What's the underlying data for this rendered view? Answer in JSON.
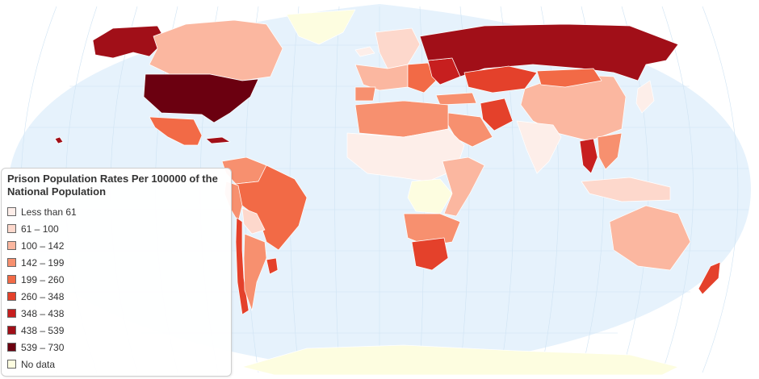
{
  "legend": {
    "title": "Prison Population Rates Per 100000 of the National Population",
    "items": [
      {
        "label": "Less than 61",
        "color": "#fdeee9"
      },
      {
        "label": "61 – 100",
        "color": "#fdd8cc"
      },
      {
        "label": "100 – 142",
        "color": "#fbb7a0"
      },
      {
        "label": "142 – 199",
        "color": "#f7906f"
      },
      {
        "label": "199 – 260",
        "color": "#f26a46"
      },
      {
        "label": "260 – 348",
        "color": "#e4412b"
      },
      {
        "label": "348 – 438",
        "color": "#c71f1f"
      },
      {
        "label": "438 – 539",
        "color": "#a10f18"
      },
      {
        "label": "539 – 730",
        "color": "#6b0010"
      },
      {
        "label": "No data",
        "color": "#fdfde0"
      }
    ]
  },
  "map": {
    "ocean_color": "#e6f2fc",
    "graticule_color": "#cfe3f3",
    "regions": [
      {
        "name": "Alaska",
        "bin": 7
      },
      {
        "name": "Canada",
        "bin": 2
      },
      {
        "name": "Greenland",
        "bin": 9
      },
      {
        "name": "United States",
        "bin": 8
      },
      {
        "name": "Mexico",
        "bin": 4
      },
      {
        "name": "Cuba",
        "bin": 7
      },
      {
        "name": "Hawaii",
        "bin": 7
      },
      {
        "name": "Venezuela/Colombia",
        "bin": 3
      },
      {
        "name": "Brazil",
        "bin": 4
      },
      {
        "name": "Peru",
        "bin": 3
      },
      {
        "name": "Bolivia",
        "bin": 1
      },
      {
        "name": "Chile",
        "bin": 5
      },
      {
        "name": "Argentina",
        "bin": 3
      },
      {
        "name": "Uruguay",
        "bin": 5
      },
      {
        "name": "Iceland",
        "bin": 0
      },
      {
        "name": "Scandinavia",
        "bin": 1
      },
      {
        "name": "Western Europe",
        "bin": 2
      },
      {
        "name": "Spain",
        "bin": 3
      },
      {
        "name": "Eastern Europe",
        "bin": 4
      },
      {
        "name": "Belarus/Ukraine",
        "bin": 6
      },
      {
        "name": "Russia",
        "bin": 7
      },
      {
        "name": "Kazakhstan",
        "bin": 5
      },
      {
        "name": "Turkey",
        "bin": 3
      },
      {
        "name": "Iran",
        "bin": 5
      },
      {
        "name": "Saudi Arabia",
        "bin": 3
      },
      {
        "name": "China",
        "bin": 2
      },
      {
        "name": "Mongolia",
        "bin": 4
      },
      {
        "name": "India",
        "bin": 0
      },
      {
        "name": "Thailand",
        "bin": 6
      },
      {
        "name": "Southeast Asia",
        "bin": 3
      },
      {
        "name": "Japan",
        "bin": 0
      },
      {
        "name": "Indonesia",
        "bin": 1
      },
      {
        "name": "Australia",
        "bin": 2
      },
      {
        "name": "New Zealand",
        "bin": 5
      },
      {
        "name": "North Africa",
        "bin": 3
      },
      {
        "name": "Sahel",
        "bin": 0
      },
      {
        "name": "Central Africa",
        "bin": 9
      },
      {
        "name": "East Africa",
        "bin": 2
      },
      {
        "name": "Southern Africa",
        "bin": 3
      },
      {
        "name": "South Africa",
        "bin": 5
      },
      {
        "name": "Antarctica",
        "bin": 9
      }
    ]
  }
}
